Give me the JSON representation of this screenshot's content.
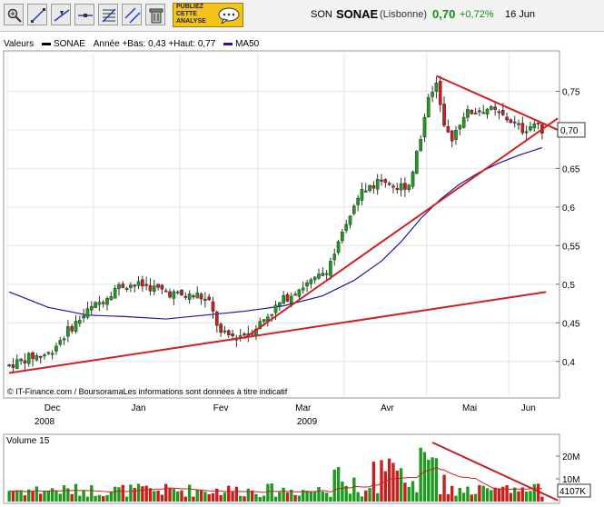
{
  "header": {
    "ticker": "SON",
    "name": "SONAE",
    "exchange": "(Lisbonne)",
    "price": "0,70",
    "change": "+0,72%",
    "date": "16 Jun",
    "ad_lines": [
      "PUBLIEZ",
      "CETTE",
      "ANALYSE"
    ]
  },
  "toolbar": {
    "icons": [
      "zoom-icon",
      "line-draw-icon",
      "trend-line-icon",
      "horizontal-line-icon",
      "fibonacci-icon",
      "channel-icon",
      "parallel-lines-icon",
      "trash-icon"
    ]
  },
  "legend": {
    "label": "Valeurs",
    "series_name": "SONAE",
    "stats": "Année +Bas: 0,43 +Haut: 0,77",
    "ma_name": "MA50",
    "ma_color": "#1a1aa0"
  },
  "credit": "© IT-Finance.com / BoursoramaLes informations sont données à titre indicatif",
  "volume_label": "Volume 15",
  "last_volume": "4107K",
  "chart_data": {
    "type": "candlestick",
    "price_axis": {
      "ylim": [
        0.355,
        0.8
      ],
      "ticks": [
        "0,75",
        "0,7",
        "0,65",
        "0,6",
        "0,55",
        "0,5",
        "0,45",
        "0,4"
      ],
      "tick_values": [
        0.75,
        0.7,
        0.65,
        0.6,
        0.55,
        0.5,
        0.45,
        0.4
      ],
      "last_label": "0,70",
      "last_value": 0.7
    },
    "x_axis": {
      "months": [
        "Dec",
        "Jan",
        "Fev",
        "Mar",
        "Avr",
        "Mai",
        "Jun"
      ],
      "month_starts": [
        0,
        22,
        44,
        64,
        86,
        107,
        128
      ],
      "years": [
        {
          "label": "2008",
          "at": 9
        },
        {
          "label": "2009",
          "at": 76
        }
      ],
      "n_days": 137
    },
    "anchors": [
      [
        0,
        0.395
      ],
      [
        5,
        0.405
      ],
      [
        10,
        0.41
      ],
      [
        15,
        0.44
      ],
      [
        20,
        0.465
      ],
      [
        24,
        0.48
      ],
      [
        27,
        0.495
      ],
      [
        30,
        0.5
      ],
      [
        35,
        0.498
      ],
      [
        40,
        0.49
      ],
      [
        45,
        0.484
      ],
      [
        48,
        0.486
      ],
      [
        51,
        0.476
      ],
      [
        54,
        0.435
      ],
      [
        58,
        0.432
      ],
      [
        62,
        0.44
      ],
      [
        66,
        0.46
      ],
      [
        70,
        0.48
      ],
      [
        74,
        0.495
      ],
      [
        78,
        0.505
      ],
      [
        81,
        0.52
      ],
      [
        84,
        0.55
      ],
      [
        87,
        0.59
      ],
      [
        90,
        0.62
      ],
      [
        93,
        0.63
      ],
      [
        96,
        0.635
      ],
      [
        99,
        0.625
      ],
      [
        102,
        0.63
      ],
      [
        105,
        0.69
      ],
      [
        107,
        0.745
      ],
      [
        109,
        0.76
      ],
      [
        111,
        0.7
      ],
      [
        113,
        0.69
      ],
      [
        116,
        0.72
      ],
      [
        119,
        0.725
      ],
      [
        122,
        0.728
      ],
      [
        125,
        0.72
      ],
      [
        128,
        0.712
      ],
      [
        131,
        0.7
      ],
      [
        134,
        0.708
      ],
      [
        136,
        0.7
      ]
    ],
    "ma50": [
      [
        0,
        0.49
      ],
      [
        10,
        0.47
      ],
      [
        20,
        0.46
      ],
      [
        30,
        0.458
      ],
      [
        40,
        0.455
      ],
      [
        50,
        0.46
      ],
      [
        60,
        0.465
      ],
      [
        70,
        0.472
      ],
      [
        80,
        0.485
      ],
      [
        88,
        0.505
      ],
      [
        95,
        0.53
      ],
      [
        100,
        0.555
      ],
      [
        105,
        0.585
      ],
      [
        110,
        0.61
      ],
      [
        115,
        0.63
      ],
      [
        120,
        0.645
      ],
      [
        125,
        0.657
      ],
      [
        130,
        0.667
      ],
      [
        136,
        0.677
      ]
    ],
    "trendlines": [
      {
        "from": [
          0,
          0.385
        ],
        "to": [
          137,
          0.49
        ],
        "color": "#d02020"
      },
      {
        "from": [
          60,
          0.43
        ],
        "to": [
          140,
          0.715
        ],
        "color": "#d02020"
      },
      {
        "from": [
          109,
          0.77
        ],
        "to": [
          140,
          0.7
        ],
        "color": "#d02020"
      }
    ],
    "volume_axis": {
      "ylim": [
        0,
        28
      ],
      "ticks": [
        "20M",
        "10M"
      ],
      "tick_values": [
        20,
        10
      ]
    }
  }
}
